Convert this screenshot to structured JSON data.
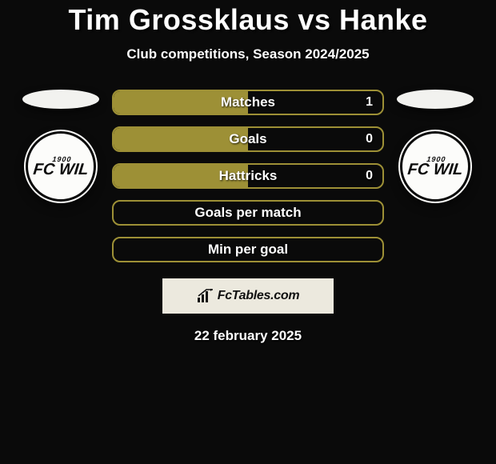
{
  "title": "Tim Grossklaus vs Hanke",
  "subtitle": "Club competitions, Season 2024/2025",
  "accent_color": "#9d9036",
  "background_color": "#0a0a0a",
  "text_color": "#ffffff",
  "title_fontsize_pt": 27,
  "subtitle_fontsize_pt": 13,
  "stat_label_fontsize_pt": 13,
  "left": {
    "club_badge_text": "FC WIL",
    "club_badge_sub": "1900"
  },
  "right": {
    "club_badge_text": "FC WIL",
    "club_badge_sub": "1900"
  },
  "stats": [
    {
      "label": "Matches",
      "left_value": "",
      "right_value": "1",
      "left_fill_pct": 50,
      "fill_color": "#9d9036"
    },
    {
      "label": "Goals",
      "left_value": "",
      "right_value": "0",
      "left_fill_pct": 50,
      "fill_color": "#9d9036"
    },
    {
      "label": "Hattricks",
      "left_value": "",
      "right_value": "0",
      "left_fill_pct": 50,
      "fill_color": "#9d9036"
    },
    {
      "label": "Goals per match",
      "left_value": "",
      "right_value": "",
      "left_fill_pct": 0,
      "fill_color": "#9d9036"
    },
    {
      "label": "Min per goal",
      "left_value": "",
      "right_value": "",
      "left_fill_pct": 0,
      "fill_color": "#9d9036"
    }
  ],
  "attribution": {
    "brand": "FcTables.com",
    "box_bg": "#ece9de"
  },
  "date": "22 february 2025"
}
